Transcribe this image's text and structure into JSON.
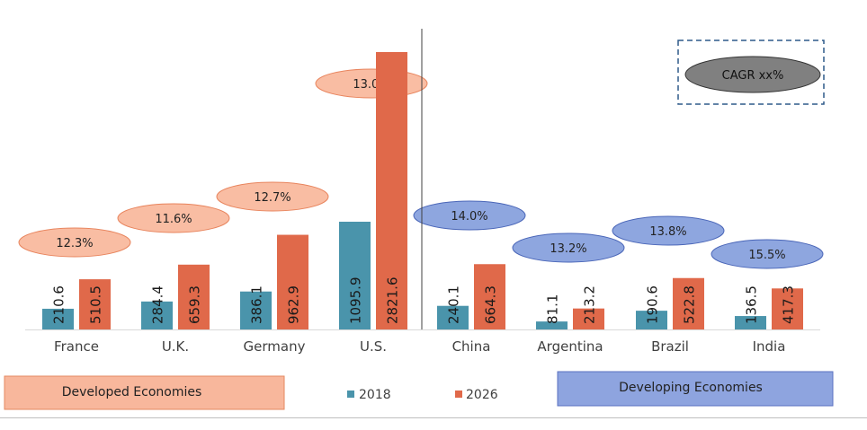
{
  "chart_data": {
    "type": "bar",
    "categories": [
      "France",
      "U.K.",
      "Germany",
      "U.S.",
      "China",
      "Argentina",
      "Brazil",
      "India"
    ],
    "series": [
      {
        "name": "2018",
        "color": "#4a94ab",
        "values": [
          210.6,
          284.4,
          386.1,
          1095.9,
          240.1,
          81.1,
          190.6,
          136.5
        ]
      },
      {
        "name": "2026",
        "color": "#e0694a",
        "values": [
          510.5,
          659.3,
          962.9,
          2821.6,
          664.3,
          213.2,
          522.8,
          417.3
        ]
      }
    ],
    "data_labels": {
      "2018": [
        "210.6",
        "284.4",
        "386.1",
        "1095.9",
        "240.1",
        "81.1",
        "190.6",
        "136.5"
      ],
      "2026": [
        "510.5",
        "659.3",
        "962.9",
        "2821.6",
        "664.3",
        "213.2",
        "522.8",
        "417.3"
      ]
    },
    "cagr_labels": [
      "12.3%",
      "11.6%",
      "12.7%",
      "13.0%",
      "14.0%",
      "13.2%",
      "13.8%",
      "15.5%"
    ],
    "groups": [
      {
        "label": "Developed Economies",
        "categories": [
          "France",
          "U.K.",
          "Germany",
          "U.S."
        ],
        "color": "#f8b79c"
      },
      {
        "label": "Developing Economies",
        "categories": [
          "China",
          "Argentina",
          "Brazil",
          "India"
        ],
        "color": "#8ea4df"
      }
    ],
    "legend_box": {
      "label": "CAGR xx%",
      "color": "#808080"
    },
    "legend": [
      "2018",
      "2026"
    ],
    "legend_position": "bottom",
    "grid": false,
    "ylim": [
      0,
      2900
    ],
    "colors": {
      "series_2018": "#4a94ab",
      "series_2026": "#e0694a",
      "developed_bubble": "#f9bda3",
      "developing_bubble": "#8ea6df",
      "axis": "#d9d9d9",
      "divider": "#404040",
      "dashed_box": "#2e5a8a"
    }
  }
}
